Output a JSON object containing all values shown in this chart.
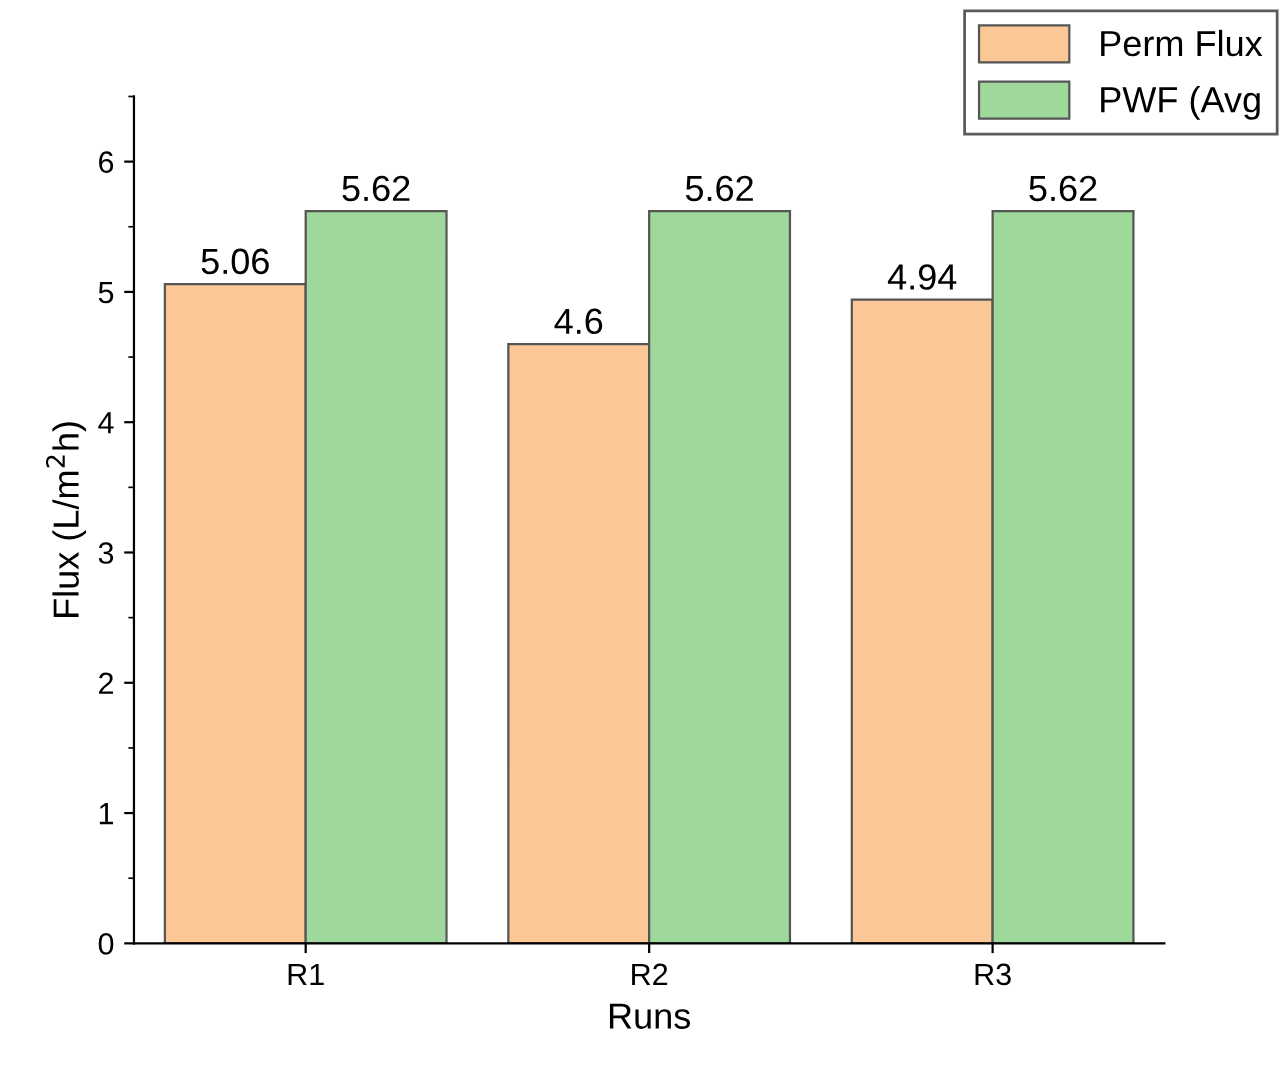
{
  "chart_data": {
    "type": "bar",
    "xlabel": "Runs",
    "ylabel": "Flux (L/m$^{2}$h)",
    "categories": [
      "R1",
      "R2",
      "R3"
    ],
    "series": [
      {
        "name": "Perm Flux",
        "color": "#fbc797",
        "values": [
          5.06,
          4.6,
          4.94
        ]
      },
      {
        "name": "PWF (Avg",
        "color": "#9ed89a",
        "values": [
          5.62,
          5.62,
          5.62
        ]
      }
    ],
    "ylim": [
      0,
      6.5
    ],
    "yticks": [
      0,
      1,
      2,
      3,
      4,
      5,
      6
    ],
    "data_labels": true,
    "grid": false,
    "legend": "top right"
  }
}
